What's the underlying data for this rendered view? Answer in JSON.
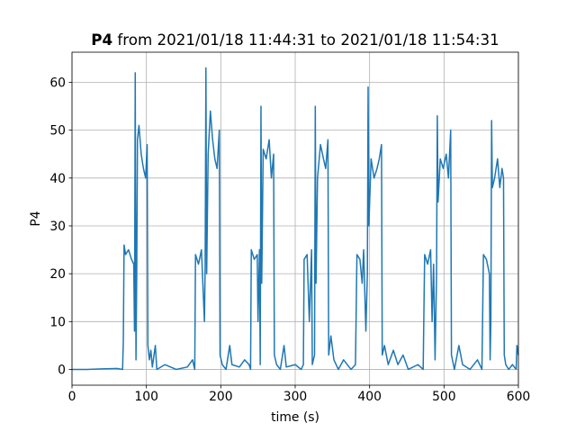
{
  "chart_data": {
    "type": "line",
    "title_bold": "P4",
    "title": "from 2021/01/18 11:44:31 to 2021/01/18 11:54:31",
    "x_label": "time (s)",
    "y_label": "P4",
    "color": "#1f77b4",
    "grid": true,
    "xlim": [
      0,
      600
    ],
    "ylim": [
      -3.3,
      66.3
    ],
    "xticks": [
      0,
      100,
      200,
      300,
      400,
      500,
      600
    ],
    "yticks": [
      0,
      10,
      20,
      30,
      40,
      50,
      60
    ],
    "x": [
      0,
      20,
      40,
      60,
      68,
      69,
      70,
      72,
      76,
      80,
      83,
      84,
      85,
      86,
      87,
      88,
      90,
      93,
      96,
      99,
      101,
      102,
      104,
      106,
      108,
      112,
      114,
      125,
      140,
      155,
      162,
      165,
      166,
      170,
      174,
      178,
      179,
      180,
      181,
      183,
      186,
      189,
      192,
      195,
      198,
      199,
      202,
      207,
      212,
      215,
      225,
      232,
      238,
      240,
      241,
      245,
      249,
      250,
      252,
      253,
      254,
      255,
      257,
      261,
      265,
      268,
      271,
      272,
      275,
      280,
      285,
      288,
      300,
      308,
      311,
      312,
      316,
      319,
      322,
      323,
      326,
      327,
      328,
      330,
      334,
      338,
      341,
      344,
      345,
      348,
      352,
      358,
      365,
      375,
      381,
      383,
      387,
      390,
      392,
      395,
      397,
      398,
      399,
      402,
      406,
      410,
      413,
      416,
      417,
      420,
      425,
      432,
      438,
      445,
      452,
      465,
      472,
      474,
      478,
      482,
      484,
      486,
      488,
      490,
      491,
      492,
      495,
      499,
      503,
      506,
      509,
      510,
      514,
      520,
      525,
      535,
      545,
      551,
      553,
      557,
      561,
      562,
      563,
      564,
      565,
      568,
      572,
      575,
      578,
      580,
      581,
      583,
      587,
      592,
      597,
      598,
      600
    ],
    "values": [
      0,
      0,
      0.1,
      0.2,
      0,
      6,
      26,
      24,
      25,
      23,
      22,
      8,
      62,
      2,
      20,
      48,
      51,
      45,
      42,
      40,
      47,
      5,
      2,
      4,
      0.5,
      5,
      0,
      1,
      0,
      0.5,
      2,
      0,
      24,
      22,
      25,
      10,
      22,
      63,
      20,
      45,
      54,
      48,
      44,
      42,
      50,
      3,
      1,
      0,
      5,
      1,
      0.5,
      2,
      1,
      0,
      25,
      23,
      24,
      10,
      25,
      1,
      55,
      18,
      46,
      44,
      48,
      40,
      45,
      3,
      1,
      0,
      5,
      0.5,
      1,
      0,
      1,
      23,
      24,
      10,
      25,
      1,
      3,
      55,
      18,
      40,
      47,
      44,
      42,
      48,
      3,
      7,
      2,
      0,
      2,
      0,
      1,
      24,
      23,
      18,
      25,
      8,
      20,
      59,
      30,
      44,
      40,
      42,
      44,
      47,
      3,
      5,
      1,
      4,
      1,
      3,
      0,
      1,
      0,
      24,
      22,
      25,
      10,
      22,
      2,
      20,
      53,
      35,
      44,
      42,
      45,
      40,
      50,
      3,
      0,
      5,
      1,
      0,
      2,
      0,
      24,
      23,
      20,
      2,
      10,
      52,
      38,
      40,
      44,
      38,
      42,
      40,
      3,
      1,
      0,
      1,
      0,
      5,
      3
    ]
  }
}
